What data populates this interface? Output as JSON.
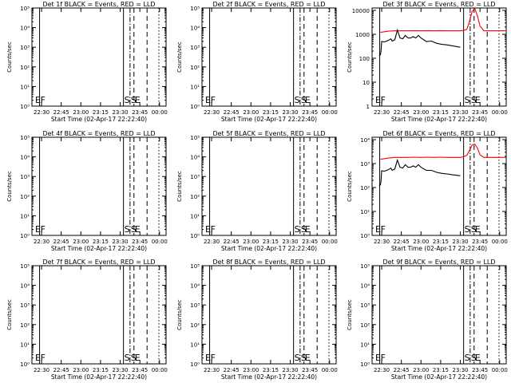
{
  "colors": {
    "events": "#000000",
    "lld": "#ff0000",
    "axis": "#000000",
    "bg": "#ffffff"
  },
  "shared": {
    "xlabel": "Start Time (02-Apr-17 22:22:40)",
    "ylabel": "Counts/sec",
    "xticks": [
      "22:30",
      "22:45",
      "23:00",
      "23:15",
      "23:30",
      "23:45",
      "00:00"
    ],
    "xtick_minutes": [
      450,
      465,
      480,
      495,
      510,
      525,
      540
    ],
    "xlim_minutes": [
      442.67,
      545
    ],
    "markers": [
      {
        "label": "E",
        "minute": 444.5,
        "style": "none"
      },
      {
        "label": "F",
        "minute": 448.5,
        "style": "solid"
      },
      {
        "label": "S",
        "minute": 512.5,
        "style": "solid"
      },
      {
        "label": "S",
        "minute": 517.5,
        "style": "dashdot"
      },
      {
        "label": "E",
        "minute": 520.5,
        "style": "dashed"
      },
      {
        "label": "",
        "minute": 530.5,
        "style": "dashed"
      },
      {
        "label": "",
        "minute": 539.5,
        "style": "dotted"
      }
    ]
  },
  "chart_data": [
    {
      "type": "line",
      "title": "Det 1f BLACK = Events, RED = LLD",
      "ylog": true,
      "yticks": [
        "10⁰",
        "10¹",
        "10²",
        "10³",
        "10⁴",
        "10⁵"
      ],
      "ytick_exps": [
        0,
        1,
        2,
        3,
        4,
        5
      ],
      "ylim_exp": [
        0,
        5
      ],
      "series": []
    },
    {
      "type": "line",
      "title": "Det 2f BLACK = Events, RED = LLD",
      "ylog": true,
      "yticks": [
        "10⁰",
        "10¹",
        "10²",
        "10³",
        "10⁴",
        "10⁵"
      ],
      "ytick_exps": [
        0,
        1,
        2,
        3,
        4,
        5
      ],
      "ylim_exp": [
        0,
        5
      ],
      "series": []
    },
    {
      "type": "line",
      "title": "Det 3f BLACK = Events, RED = LLD",
      "ylog": true,
      "yticks": [
        "1",
        "10",
        "100",
        "1000",
        "10000"
      ],
      "ytick_exps": [
        0,
        1,
        2,
        3,
        4
      ],
      "ylim_exp": [
        0,
        4.1
      ],
      "series": [
        {
          "color": "#ff0000",
          "x": [
            449,
            455,
            460,
            465,
            470,
            475,
            480,
            485,
            490,
            495,
            500,
            505,
            510,
            512,
            515,
            517,
            519,
            521,
            523,
            525,
            528,
            532,
            540,
            545
          ],
          "y": [
            1200,
            1350,
            1400,
            1400,
            1400,
            1420,
            1400,
            1420,
            1400,
            1420,
            1400,
            1400,
            1400,
            1450,
            1600,
            3500,
            9000,
            12000,
            6000,
            2200,
            1400,
            1400,
            1400,
            1400
          ]
        },
        {
          "color": "#000000",
          "x": [
            448,
            449,
            449.5,
            450,
            452,
            455,
            457,
            458,
            460,
            462,
            464,
            466,
            468,
            470,
            472,
            474,
            476,
            478,
            480,
            484,
            488,
            492,
            496,
            500,
            504,
            508,
            510
          ],
          "y": [
            130,
            140,
            200,
            500,
            480,
            550,
            650,
            520,
            600,
            1500,
            700,
            650,
            900,
            700,
            700,
            800,
            700,
            900,
            700,
            500,
            520,
            420,
            380,
            360,
            330,
            300,
            290
          ]
        }
      ]
    },
    {
      "type": "line",
      "title": "Det 4f BLACK = Events, RED = LLD",
      "ylog": true,
      "yticks": [
        "10⁰",
        "10¹",
        "10²",
        "10³",
        "10⁴",
        "10⁵"
      ],
      "ytick_exps": [
        0,
        1,
        2,
        3,
        4,
        5
      ],
      "ylim_exp": [
        0,
        5
      ],
      "series": []
    },
    {
      "type": "line",
      "title": "Det 5f BLACK = Events, RED = LLD",
      "ylog": true,
      "yticks": [
        "10⁰",
        "10¹",
        "10²",
        "10³",
        "10⁴",
        "10⁵"
      ],
      "ytick_exps": [
        0,
        1,
        2,
        3,
        4,
        5
      ],
      "ylim_exp": [
        0,
        5
      ],
      "series": []
    },
    {
      "type": "line",
      "title": "Det 6f BLACK = Events, RED = LLD",
      "ylog": true,
      "yticks": [
        "10⁰",
        "10¹",
        "10²",
        "10³",
        "10⁴"
      ],
      "ytick_exps": [
        0,
        1,
        2,
        3,
        4
      ],
      "ylim_exp": [
        0,
        4.1
      ],
      "series": [
        {
          "color": "#ff0000",
          "x": [
            449,
            455,
            460,
            465,
            470,
            475,
            480,
            485,
            490,
            495,
            500,
            505,
            510,
            512,
            515,
            517,
            519,
            521,
            523,
            525,
            528,
            532,
            540,
            545
          ],
          "y": [
            1500,
            1700,
            1800,
            1800,
            1800,
            1850,
            1800,
            1850,
            1800,
            1850,
            1800,
            1800,
            1800,
            1900,
            2200,
            3500,
            6000,
            6500,
            4500,
            2300,
            1800,
            1800,
            1800,
            1800
          ]
        },
        {
          "color": "#000000",
          "x": [
            448,
            449,
            449.5,
            450,
            452,
            455,
            457,
            458,
            460,
            462,
            464,
            466,
            468,
            470,
            472,
            474,
            476,
            478,
            480,
            484,
            488,
            492,
            496,
            500,
            504,
            508,
            510
          ],
          "y": [
            120,
            130,
            180,
            500,
            480,
            550,
            650,
            520,
            600,
            1400,
            700,
            650,
            900,
            700,
            700,
            800,
            700,
            900,
            700,
            520,
            520,
            430,
            390,
            370,
            340,
            320,
            310
          ]
        }
      ]
    },
    {
      "type": "line",
      "title": "Det 7f BLACK = Events, RED = LLD",
      "ylog": true,
      "yticks": [
        "10⁰",
        "10¹",
        "10²",
        "10³",
        "10⁴",
        "10⁵"
      ],
      "ytick_exps": [
        0,
        1,
        2,
        3,
        4,
        5
      ],
      "ylim_exp": [
        0,
        5
      ],
      "series": []
    },
    {
      "type": "line",
      "title": "Det 8f BLACK = Events, RED = LLD",
      "ylog": true,
      "yticks": [
        "10⁰",
        "10¹",
        "10²",
        "10³",
        "10⁴",
        "10⁵"
      ],
      "ytick_exps": [
        0,
        1,
        2,
        3,
        4,
        5
      ],
      "ylim_exp": [
        0,
        5
      ],
      "series": []
    },
    {
      "type": "line",
      "title": "Det 9f BLACK = Events, RED = LLD",
      "ylog": true,
      "yticks": [
        "10⁰",
        "10¹",
        "10²",
        "10³",
        "10⁴",
        "10⁵"
      ],
      "ytick_exps": [
        0,
        1,
        2,
        3,
        4,
        5
      ],
      "ylim_exp": [
        0,
        5
      ],
      "series": []
    }
  ]
}
